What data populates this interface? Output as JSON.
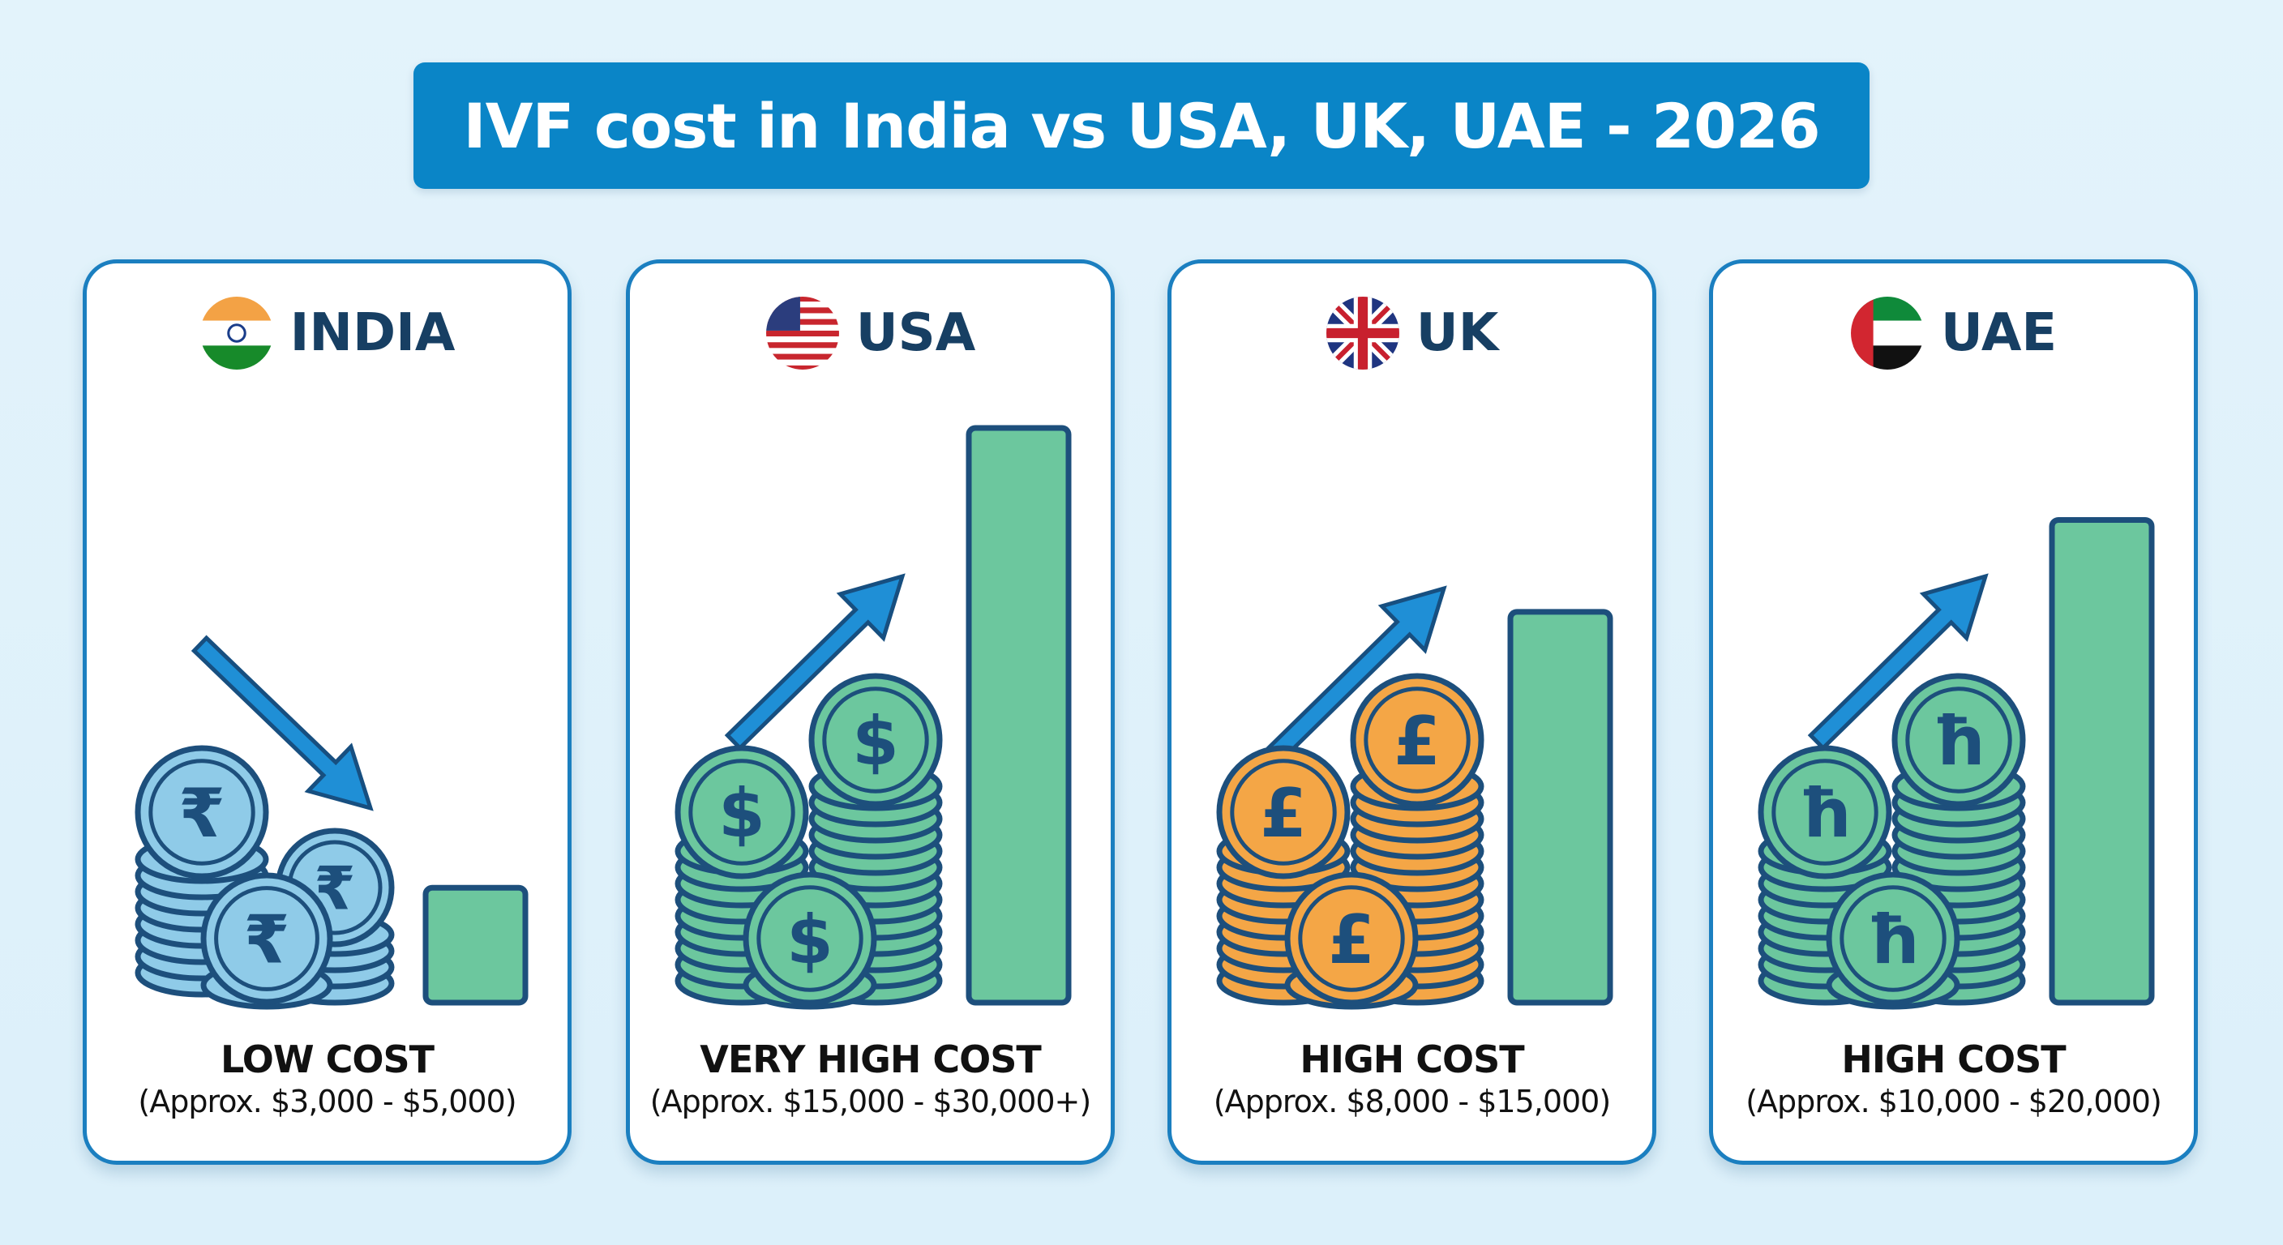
{
  "title": "IVF cost in India vs USA, UK, UAE - 2026",
  "colors": {
    "title_bg": "#0a85c7",
    "card_border": "#1b7fc0",
    "bar": "#6cc79e",
    "outline": "#1d4f7c",
    "arrow": "#1f8fd6"
  },
  "chart_data": {
    "type": "bar",
    "title": "IVF cost in India vs USA, UK, UAE - 2026",
    "categories": [
      "INDIA",
      "USA",
      "UK",
      "UAE"
    ],
    "relative_bar_level_percent": [
      20,
      100,
      68,
      84
    ],
    "grid": false,
    "legend": "none"
  },
  "cards": [
    {
      "country": "INDIA",
      "flag": "india-flag",
      "trend": "down",
      "coin_color": "#8fcbe8",
      "currency_symbol": "₹",
      "cost_label": "LOW COST",
      "cost_range": "(Approx. $3,000 - $5,000)",
      "level": 20
    },
    {
      "country": "USA",
      "flag": "usa-flag",
      "trend": "up",
      "coin_color": "#6cc79e",
      "currency_symbol": "$",
      "cost_label": "VERY HIGH COST",
      "cost_range": "(Approx. $15,000 - $30,000+)",
      "level": 100
    },
    {
      "country": "UK",
      "flag": "uk-flag",
      "trend": "up",
      "coin_color": "#f4a646",
      "currency_symbol": "£",
      "cost_label": "HIGH COST",
      "cost_range": "(Approx. $8,000 - $15,000)",
      "level": 68
    },
    {
      "country": "UAE",
      "flag": "uae-flag",
      "trend": "up",
      "coin_color": "#6cc79e",
      "currency_symbol": "ħ",
      "cost_label": "HIGH COST",
      "cost_range": "(Approx. $10,000 - $20,000)",
      "level": 84
    }
  ]
}
